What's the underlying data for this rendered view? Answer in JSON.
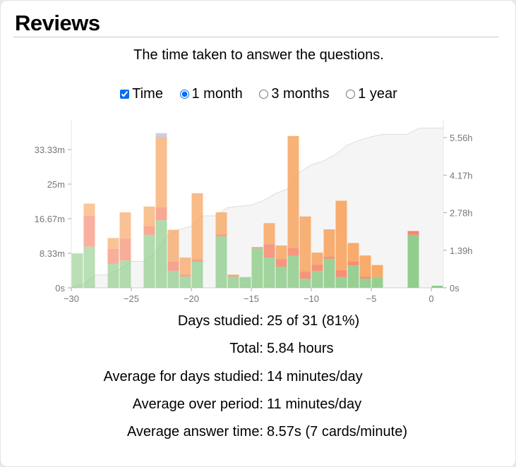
{
  "header": {
    "title": "Reviews",
    "subtitle": "The time taken to answer the questions."
  },
  "controls": {
    "time_label": "Time",
    "time_checked": true,
    "range_options": [
      "1 month",
      "3 months",
      "1 year"
    ],
    "selected": "1 month"
  },
  "colors": {
    "green": "#8fcc8a",
    "red": "#f58467",
    "orange": "#f7a45f",
    "purple": "#b7b9dc",
    "cumulative_fill": "#f5f5f5",
    "cumulative_line": "#dddddd"
  },
  "chart_data": {
    "type": "bar",
    "stacked": true,
    "x": [
      -30,
      -29,
      -28,
      -27,
      -26,
      -25,
      -24,
      -23,
      -22,
      -21,
      -20,
      -19,
      -18,
      -17,
      -16,
      -15,
      -14,
      -13,
      -12,
      -11,
      -10,
      -9,
      -8,
      -7,
      -6,
      -5,
      -4,
      -3,
      -2,
      -1,
      0
    ],
    "series": [
      {
        "color": "green",
        "values": [
          8.3,
          9.9,
          0,
          5.8,
          6.6,
          0,
          12.8,
          16.3,
          4.1,
          2.7,
          6.3,
          0,
          12.4,
          2.7,
          2.6,
          9.5,
          7.3,
          5.1,
          7.7,
          2.2,
          4.1,
          7.0,
          2.6,
          5.4,
          2.2,
          2.6,
          0,
          0,
          12.8,
          0,
          0.5
        ]
      },
      {
        "color": "red",
        "values": [
          0,
          7.5,
          0,
          3.6,
          5.3,
          0,
          2.0,
          3.1,
          2.2,
          0.5,
          0.5,
          0,
          0.5,
          0.3,
          0,
          0.3,
          3.2,
          1.9,
          1.9,
          1.7,
          1.5,
          0.5,
          1.7,
          1.0,
          0.5,
          0,
          0,
          0,
          0.9,
          0,
          0
        ]
      },
      {
        "color": "orange",
        "values": [
          0,
          2.9,
          0,
          2.6,
          6.3,
          0,
          4.8,
          17.0,
          7.7,
          4.1,
          16.0,
          0,
          5.3,
          0.2,
          0,
          0,
          5.1,
          3.2,
          27.0,
          13.3,
          2.9,
          6.6,
          16.7,
          4.4,
          5.1,
          2.9,
          0,
          0,
          0,
          0,
          0
        ]
      },
      {
        "color": "purple",
        "values": [
          0,
          0,
          0,
          0,
          0,
          0,
          0,
          0.9,
          0,
          0,
          0,
          0,
          0,
          0,
          0,
          0,
          0,
          0,
          0,
          0,
          0,
          0,
          0,
          0,
          0,
          0,
          0,
          0,
          0,
          0,
          0
        ]
      }
    ],
    "cumulative": {
      "axis": "right",
      "total_hours": 5.84
    },
    "xlim": [
      -30,
      1
    ],
    "ylim_left_minutes": [
      0,
      39.8
    ],
    "ylim_right_hours": [
      0,
      6.11
    ],
    "x_ticks": [
      "−30",
      "−25",
      "−20",
      "−15",
      "−10",
      "−5",
      "0"
    ],
    "x_tick_values": [
      -30,
      -25,
      -20,
      -15,
      -10,
      -5,
      0
    ],
    "y_left_ticks": [
      "0s",
      "8.33m",
      "16.67m",
      "25m",
      "33.33m"
    ],
    "y_left_tick_values": [
      0,
      8.33,
      16.67,
      25,
      33.33
    ],
    "y_right_ticks": [
      "0s",
      "1.39h",
      "2.78h",
      "4.17h",
      "5.56h"
    ],
    "y_right_tick_values": [
      0,
      1.39,
      2.78,
      4.17,
      5.56
    ]
  },
  "stats": [
    {
      "label": "Days studied:",
      "value": "25 of 31 (81%)"
    },
    {
      "label": "Total:",
      "value": "5.84 hours"
    },
    {
      "label": "Average for days studied:",
      "value": "14 minutes/day"
    },
    {
      "label": "Average over period:",
      "value": "11 minutes/day"
    },
    {
      "label": "Average answer time:",
      "value": "8.57s (7 cards/minute)"
    }
  ]
}
